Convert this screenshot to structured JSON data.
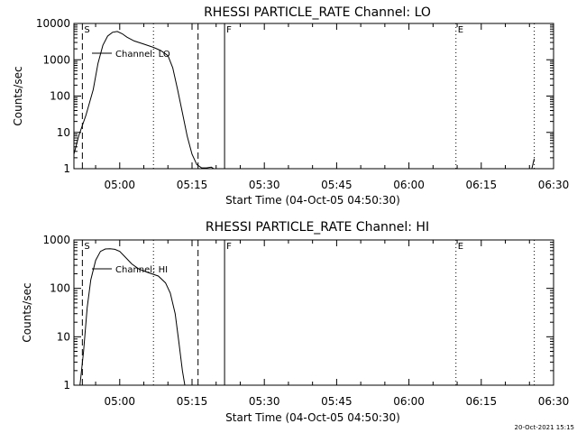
{
  "footer_timestamp": "20-Oct-2021 15:15",
  "chart_data": [
    {
      "type": "line",
      "title": "RHESSI PARTICLE_RATE Channel: LO",
      "xlabel": "Start Time (04-Oct-05 04:50:30)",
      "ylabel": "Counts/sec",
      "x_ticks": [
        "05:00",
        "05:15",
        "05:30",
        "05:45",
        "06:00",
        "06:15",
        "06:30"
      ],
      "y_ticks": [
        "1",
        "10",
        "100",
        "1000",
        "10000"
      ],
      "ylim": [
        1,
        10000
      ],
      "y_scale": "log",
      "xlim": [
        "04:50:30",
        "06:30:00"
      ],
      "series": [
        {
          "name": "Channel: LO",
          "x": [
            "04:50:30",
            "04:51:30",
            "04:53:00",
            "04:54:30",
            "04:55:30",
            "04:56:30",
            "04:57:30",
            "04:58:30",
            "04:59:30",
            "05:00:30",
            "05:01:30",
            "05:03:00",
            "05:05:00",
            "05:07:00",
            "05:08:30",
            "05:10:00",
            "05:11:00",
            "05:12:00",
            "05:13:00",
            "05:14:00",
            "05:15:00",
            "05:16:00",
            "05:17:00",
            "05:18:00",
            "05:19:00",
            "05:19:30"
          ],
          "y": [
            2.5,
            8,
            30,
            150,
            800,
            2500,
            4500,
            5700,
            6000,
            5200,
            4200,
            3300,
            2700,
            2200,
            1800,
            1300,
            600,
            150,
            35,
            8,
            2.5,
            1.3,
            1.05,
            1.05,
            1.1,
            1
          ],
          "tail": {
            "x": [
              "06:25:30",
              "06:26:00"
            ],
            "y": [
              1,
              1.9
            ]
          }
        }
      ],
      "markers": [
        {
          "label": "S",
          "time": "04:52:15",
          "style": "dashed"
        },
        {
          "label": "",
          "time": "05:16:15",
          "style": "dashed"
        },
        {
          "label": "",
          "time": "05:07:00",
          "style": "dotted"
        },
        {
          "label": "F",
          "time": "05:21:45",
          "style": "solid"
        },
        {
          "label": "E",
          "time": "06:09:45",
          "style": "dotted"
        },
        {
          "label": "",
          "time": "06:26:00",
          "style": "dotted"
        }
      ]
    },
    {
      "type": "line",
      "title": "RHESSI PARTICLE_RATE Channel: HI",
      "xlabel": "Start Time (04-Oct-05 04:50:30)",
      "ylabel": "Counts/sec",
      "x_ticks": [
        "05:00",
        "05:15",
        "05:30",
        "05:45",
        "06:00",
        "06:15",
        "06:30"
      ],
      "y_ticks": [
        "1",
        "10",
        "100",
        "1000"
      ],
      "ylim": [
        1,
        1000
      ],
      "y_scale": "log",
      "xlim": [
        "04:50:30",
        "06:30:00"
      ],
      "series": [
        {
          "name": "Channel: HI",
          "x": [
            "04:51:45",
            "04:52:30",
            "04:53:15",
            "04:54:00",
            "04:55:00",
            "04:56:00",
            "04:57:00",
            "04:58:00",
            "04:59:00",
            "05:00:00",
            "05:01:00",
            "05:02:30",
            "05:04:00",
            "05:06:00",
            "05:08:00",
            "05:09:30",
            "05:10:30",
            "05:11:30",
            "05:12:15",
            "05:13:00",
            "05:13:30"
          ],
          "y": [
            1,
            5,
            40,
            150,
            380,
            580,
            650,
            660,
            640,
            580,
            460,
            320,
            250,
            210,
            180,
            130,
            80,
            30,
            8,
            2,
            1
          ]
        }
      ],
      "markers": [
        {
          "label": "S",
          "time": "04:52:15",
          "style": "dashed"
        },
        {
          "label": "",
          "time": "05:16:15",
          "style": "dashed"
        },
        {
          "label": "",
          "time": "05:07:00",
          "style": "dotted"
        },
        {
          "label": "F",
          "time": "05:21:45",
          "style": "solid"
        },
        {
          "label": "E",
          "time": "06:09:45",
          "style": "dotted"
        },
        {
          "label": "",
          "time": "06:26:00",
          "style": "dotted"
        }
      ]
    }
  ]
}
